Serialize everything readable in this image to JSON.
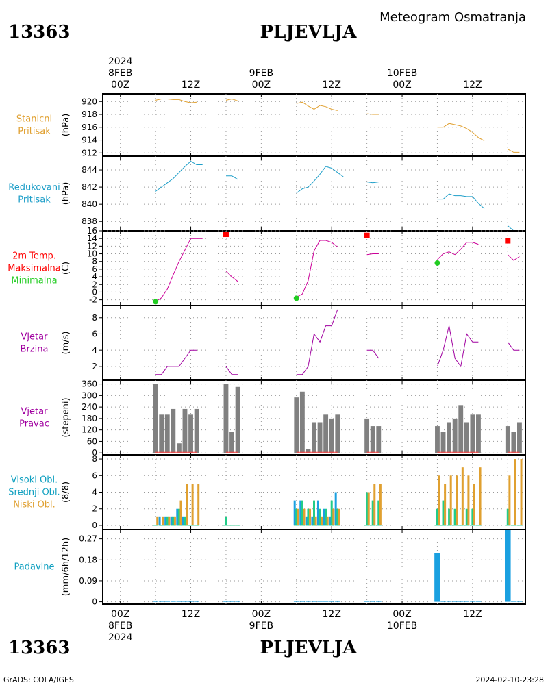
{
  "header": {
    "station_id": "13363",
    "station_name": "PLJEVLJA",
    "title": "Meteogram Osmatranja"
  },
  "footer": {
    "credit": "GrADS: COLA/IGES",
    "timestamp": "2024-02-10-23:28"
  },
  "time_axis": {
    "year": "2024",
    "days": [
      {
        "date": "8FEB",
        "hour_labels": [
          "00Z",
          "12Z"
        ]
      },
      {
        "date": "9FEB",
        "hour_labels": [
          "00Z",
          "12Z"
        ]
      },
      {
        "date": "10FEB",
        "hour_labels": [
          "00Z",
          "12Z"
        ]
      }
    ],
    "x_range_hours": [
      -3,
      69
    ],
    "major_ticks_hours": [
      0,
      12,
      24,
      36,
      48,
      60
    ],
    "label_ticks": [
      "00Z",
      "12Z",
      "00Z",
      "12Z",
      "00Z",
      "12Z"
    ],
    "top_date_labels": [
      "8FEB",
      "9FEB",
      "10FEB"
    ],
    "bottom_date_labels": [
      "8FEB",
      "9FEB",
      "10FEB"
    ]
  },
  "chart_data": [
    {
      "id": "station_pressure",
      "type": "line",
      "labels": [
        "Stanicni",
        "Pritisak"
      ],
      "label_color": "#e0a030",
      "ylabel": "(hPa)",
      "ylim": [
        911.5,
        921.2
      ],
      "yticks": [
        912,
        914,
        916,
        918,
        920
      ],
      "color": "#e0a030",
      "segments": [
        [
          [
            6,
            920.2
          ],
          [
            7,
            920.4
          ],
          [
            8,
            920.4
          ],
          [
            9,
            920.3
          ],
          [
            10,
            920.3
          ],
          [
            11,
            920.0
          ],
          [
            12,
            919.8
          ],
          [
            13,
            919.9
          ]
        ],
        [
          [
            18,
            920.2
          ],
          [
            19,
            920.4
          ],
          [
            20,
            920.1
          ]
        ],
        [
          [
            30,
            919.7
          ],
          [
            31,
            919.9
          ],
          [
            32,
            919.3
          ],
          [
            33,
            918.8
          ],
          [
            34,
            919.4
          ],
          [
            35,
            919.2
          ],
          [
            36,
            918.8
          ],
          [
            37,
            918.6
          ]
        ],
        [
          [
            42,
            918.1
          ],
          [
            43,
            918.0
          ],
          [
            44,
            918.0
          ]
        ],
        [
          [
            54,
            916.0
          ],
          [
            55,
            916.0
          ],
          [
            56,
            916.6
          ],
          [
            57,
            916.4
          ],
          [
            58,
            916.2
          ],
          [
            59,
            915.8
          ],
          [
            60,
            915.2
          ],
          [
            61,
            914.4
          ],
          [
            62,
            913.9
          ]
        ],
        [
          [
            66,
            912.6
          ],
          [
            67,
            912.1
          ],
          [
            68,
            912.1
          ]
        ]
      ]
    },
    {
      "id": "reduced_pressure",
      "type": "line",
      "labels": [
        "Redukovani",
        "Pritisak"
      ],
      "label_color": "#1f9fc9",
      "ylabel": "(hPa)",
      "ylim": [
        836.9,
        845.6
      ],
      "yticks": [
        838,
        840,
        842,
        844
      ],
      "color": "#1f9fc9",
      "segments": [
        [
          [
            6,
            841.5
          ],
          [
            7,
            842.0
          ],
          [
            8,
            842.5
          ],
          [
            9,
            843.0
          ],
          [
            10,
            843.7
          ],
          [
            11,
            844.4
          ],
          [
            12,
            845.0
          ],
          [
            13,
            844.6
          ],
          [
            14,
            844.6
          ]
        ],
        [
          [
            18,
            843.3
          ],
          [
            19,
            843.3
          ],
          [
            20,
            842.9
          ]
        ],
        [
          [
            30,
            841.3
          ],
          [
            31,
            841.8
          ],
          [
            32,
            842.0
          ],
          [
            33,
            842.7
          ],
          [
            34,
            843.5
          ],
          [
            35,
            844.4
          ],
          [
            36,
            844.2
          ],
          [
            37,
            843.7
          ],
          [
            38,
            843.2
          ]
        ],
        [
          [
            42,
            842.6
          ],
          [
            43,
            842.5
          ],
          [
            44,
            842.6
          ]
        ],
        [
          [
            54,
            840.6
          ],
          [
            55,
            840.6
          ],
          [
            56,
            841.2
          ],
          [
            57,
            841.0
          ],
          [
            58,
            841.0
          ],
          [
            59,
            840.9
          ],
          [
            60,
            840.9
          ],
          [
            61,
            840.1
          ],
          [
            62,
            839.5
          ]
        ],
        [
          [
            66,
            837.5
          ],
          [
            67,
            836.9
          ],
          [
            68,
            836.9
          ]
        ]
      ]
    },
    {
      "id": "temperature",
      "type": "line",
      "labels": [
        "2m Temp.",
        "Maksimalna",
        "Minimalna"
      ],
      "label_colors": [
        "#ff0000",
        "#ff0000",
        "#22cc22"
      ],
      "ylabel": "(C)",
      "ylim": [
        -3.5,
        16
      ],
      "yticks": [
        -2,
        0,
        2,
        4,
        6,
        8,
        10,
        12,
        14,
        16
      ],
      "color": "#cc0099",
      "segments": [
        [
          [
            6,
            -2.5
          ],
          [
            7,
            -1.5
          ],
          [
            8,
            0.8
          ],
          [
            9,
            4.5
          ],
          [
            10,
            8.0
          ],
          [
            11,
            11.0
          ],
          [
            12,
            14.0
          ],
          [
            13,
            14.0
          ],
          [
            14,
            14.0
          ]
        ],
        [
          [
            18,
            5.5
          ],
          [
            19,
            4.0
          ],
          [
            20,
            2.8
          ]
        ],
        [
          [
            30,
            -1.3
          ],
          [
            31,
            -0.5
          ],
          [
            32,
            3.0
          ],
          [
            33,
            10.8
          ],
          [
            34,
            13.5
          ],
          [
            35,
            13.5
          ],
          [
            36,
            13.0
          ],
          [
            37,
            11.8
          ]
        ],
        [
          [
            42,
            9.8
          ],
          [
            43,
            10.0
          ],
          [
            44,
            10.0
          ]
        ],
        [
          [
            54,
            8.5
          ],
          [
            55,
            10.0
          ],
          [
            56,
            10.5
          ],
          [
            57,
            9.8
          ],
          [
            58,
            11.2
          ],
          [
            59,
            13.0
          ],
          [
            60,
            13.0
          ],
          [
            61,
            12.5
          ]
        ],
        [
          [
            66,
            9.8
          ],
          [
            67,
            8.3
          ],
          [
            68,
            9.3
          ]
        ]
      ],
      "max_markers": [
        [
          18,
          15.1
        ],
        [
          42,
          14.8
        ],
        [
          66,
          13.4
        ]
      ],
      "max_color": "#ff0000",
      "min_markers": [
        [
          6,
          -2.5
        ],
        [
          30,
          -1.6
        ],
        [
          54,
          7.6
        ]
      ],
      "min_color": "#22cc22"
    },
    {
      "id": "wind_speed",
      "type": "line",
      "labels": [
        "Vjetar",
        "Brzina"
      ],
      "label_color": "#a000a0",
      "ylabel": "(m/s)",
      "ylim": [
        0.3,
        9.5
      ],
      "yticks": [
        2,
        4,
        6,
        8
      ],
      "color": "#a000a0",
      "segments": [
        [
          [
            6,
            1.0
          ],
          [
            7,
            1.0
          ],
          [
            8,
            2.0
          ],
          [
            9,
            2.0
          ],
          [
            10,
            2.0
          ],
          [
            11,
            3.0
          ],
          [
            12,
            4.0
          ],
          [
            13,
            4.0
          ]
        ],
        [
          [
            18,
            2.0
          ],
          [
            19,
            1.0
          ],
          [
            20,
            1.0
          ]
        ],
        [
          [
            30,
            1.0
          ],
          [
            31,
            1.0
          ],
          [
            32,
            2.0
          ],
          [
            33,
            6.0
          ],
          [
            34,
            5.0
          ],
          [
            35,
            7.0
          ],
          [
            36,
            7.0
          ],
          [
            37,
            9.0
          ]
        ],
        [
          [
            42,
            4.0
          ],
          [
            43,
            4.0
          ],
          [
            44,
            3.0
          ]
        ],
        [
          [
            54,
            2.0
          ],
          [
            55,
            4.0
          ],
          [
            56,
            7.0
          ],
          [
            57,
            3.0
          ],
          [
            58,
            2.0
          ],
          [
            59,
            6.0
          ],
          [
            60,
            5.0
          ],
          [
            61,
            5.0
          ]
        ],
        [
          [
            66,
            5.0
          ],
          [
            67,
            4.0
          ],
          [
            68,
            4.0
          ]
        ]
      ]
    },
    {
      "id": "wind_direction",
      "type": "bar",
      "labels": [
        "Vjetar",
        "Pravac"
      ],
      "label_color": "#a000a0",
      "ylabel": "(stepeni)",
      "ylim": [
        -10,
        380
      ],
      "yticks": [
        0,
        60,
        120,
        180,
        240,
        300,
        360
      ],
      "color": "#808080",
      "bar_width_hours": 0.8,
      "x": [
        6,
        7,
        8,
        9,
        10,
        11,
        12,
        13,
        18,
        19,
        20,
        30,
        31,
        32,
        33,
        34,
        35,
        36,
        37,
        42,
        43,
        44,
        54,
        55,
        56,
        57,
        58,
        59,
        60,
        61,
        66,
        67,
        68
      ],
      "values": [
        360,
        200,
        200,
        230,
        50,
        230,
        200,
        230,
        360,
        110,
        345,
        290,
        320,
        20,
        160,
        160,
        200,
        180,
        200,
        180,
        140,
        140,
        140,
        110,
        160,
        180,
        250,
        160,
        200,
        200,
        140,
        110,
        160
      ]
    },
    {
      "id": "clouds",
      "type": "bar",
      "labels": [
        "Visoki Obl.",
        "Srednji Obl.",
        "Niski Obl."
      ],
      "label_colors": [
        "#10a0c0",
        "#10a0c0",
        "#e0a030"
      ],
      "ylabel": "(8/8)",
      "ylim": [
        -0.5,
        8.5
      ],
      "yticks": [
        0,
        2,
        4,
        6,
        8
      ],
      "x": [
        6,
        7,
        8,
        9,
        10,
        11,
        12,
        13,
        18,
        19,
        20,
        30,
        31,
        32,
        33,
        34,
        35,
        36,
        37,
        42,
        43,
        44,
        54,
        55,
        56,
        57,
        58,
        59,
        60,
        61,
        66,
        67,
        68
      ],
      "series": [
        {
          "name": "Visoki Obl.",
          "color": "#1aa0e0",
          "values": [
            0,
            1,
            1,
            1,
            2,
            1,
            0,
            0,
            0,
            0,
            0,
            3,
            3,
            1,
            1,
            3,
            2,
            1,
            4,
            0,
            0,
            0,
            0,
            0,
            0,
            0,
            0,
            0,
            0,
            0,
            0,
            0,
            0
          ]
        },
        {
          "name": "Srednji Obl.",
          "color": "#22cc88",
          "values": [
            0,
            0,
            1,
            1,
            2,
            1,
            0,
            0,
            1,
            0,
            0,
            2,
            3,
            2,
            3,
            2,
            2,
            3,
            2,
            4,
            3,
            3,
            2,
            3,
            2,
            2,
            0,
            2,
            2,
            0,
            2,
            0,
            0
          ]
        },
        {
          "name": "Niski Obl.",
          "color": "#e0a030",
          "values": [
            1,
            1,
            1,
            1,
            3,
            5,
            5,
            5,
            0,
            0,
            0,
            2,
            2,
            2,
            1,
            1,
            1,
            2,
            2,
            4,
            5,
            5,
            6,
            5,
            6,
            6,
            7,
            6,
            5,
            7,
            6,
            8,
            8
          ]
        }
      ]
    },
    {
      "id": "precipitation",
      "type": "bar",
      "labels": [
        "Padavine"
      ],
      "label_color": "#10a0c0",
      "ylabel": "(mm/6h/12h)",
      "ylim": [
        -0.01,
        0.31
      ],
      "yticks": [
        0,
        0.09,
        0.18,
        0.27
      ],
      "ytick_labels": [
        "0",
        "0.09",
        "0.18",
        "0.27"
      ],
      "color": "#1aa0e0",
      "x": [
        6,
        7,
        8,
        9,
        10,
        11,
        12,
        13,
        18,
        19,
        20,
        30,
        31,
        32,
        33,
        34,
        35,
        36,
        37,
        42,
        43,
        44,
        54,
        55,
        56,
        57,
        58,
        59,
        60,
        61,
        66,
        67,
        68
      ],
      "values": [
        0,
        0,
        0,
        0,
        0,
        0,
        0,
        0,
        0,
        0,
        0,
        0,
        0,
        0,
        0,
        0,
        0,
        0,
        0,
        0,
        0,
        0,
        0.21,
        0,
        0,
        0,
        0,
        0,
        0,
        0,
        0.31,
        0,
        0
      ],
      "bar_width_hours": [
        {
          "x": 54,
          "w": 1.0
        },
        {
          "x": 66,
          "w": 1.0
        }
      ]
    }
  ]
}
